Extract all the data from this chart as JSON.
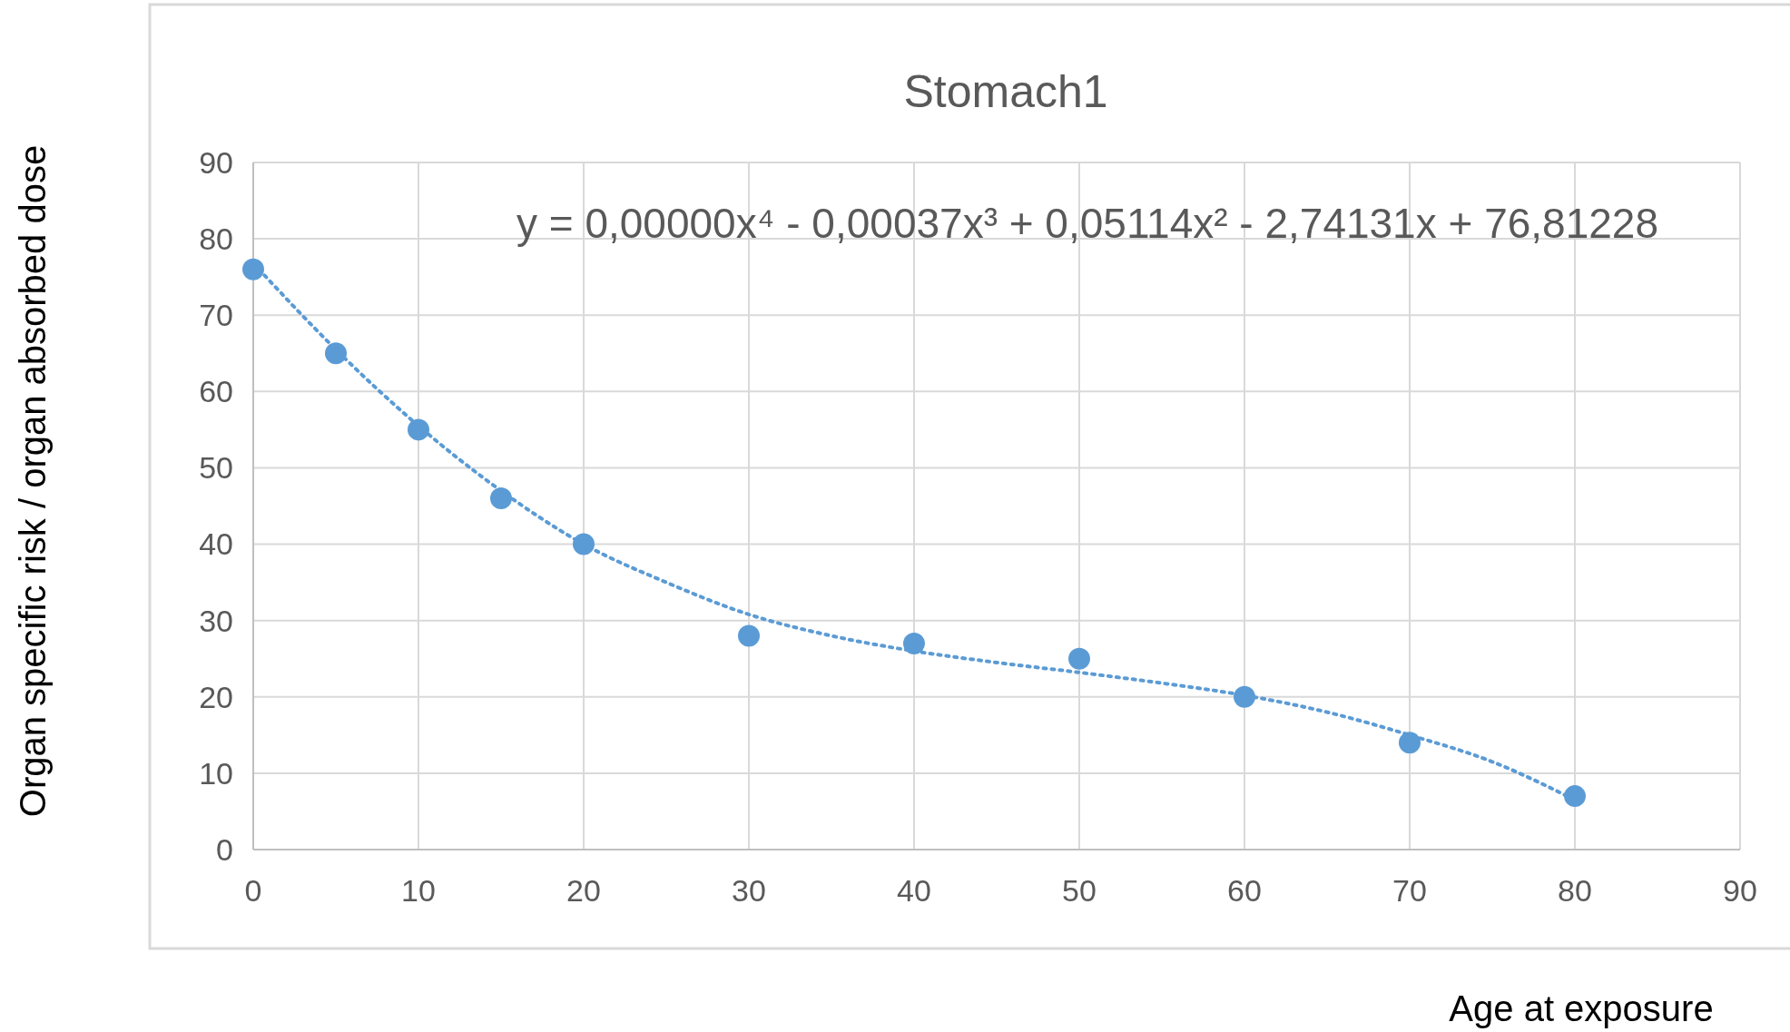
{
  "chart_data": {
    "type": "scatter",
    "title": "Stomach1",
    "xlabel": "Age at exposure",
    "ylabel": "Organ specific risk  / organ absorbed dose",
    "annotations": [
      "y = 0,00000x⁴ - 0,00037x³ + 0,05114x² - 2,74131x + 76,81228"
    ],
    "x": [
      0,
      5,
      10,
      15,
      20,
      30,
      40,
      50,
      60,
      70,
      80
    ],
    "series": [
      {
        "color": "#5b9bd5",
        "marker": "circle",
        "values": [
          76,
          65,
          55,
          46,
          40,
          28,
          27,
          25,
          20,
          14,
          7
        ]
      },
      {
        "type": "line",
        "color": "#5b9bd5",
        "line_style": "dotted",
        "marker": "none",
        "x": [
          0,
          5,
          10,
          15,
          20,
          25,
          30,
          35,
          40,
          45,
          50,
          55,
          60,
          65,
          70,
          75,
          80
        ],
        "values": [
          76.8,
          65.5,
          55.5,
          47,
          40,
          35,
          30.8,
          28,
          26,
          24.5,
          23.2,
          21.8,
          20.2,
          18,
          15,
          11.5,
          6.5
        ]
      }
    ],
    "xlim": [
      0,
      90
    ],
    "xticks": [
      0,
      10,
      20,
      30,
      40,
      50,
      60,
      70,
      80,
      90
    ],
    "ylim": [
      0,
      90
    ],
    "yticks": [
      0,
      10,
      20,
      30,
      40,
      50,
      60,
      70,
      80,
      90
    ],
    "grid": true
  }
}
